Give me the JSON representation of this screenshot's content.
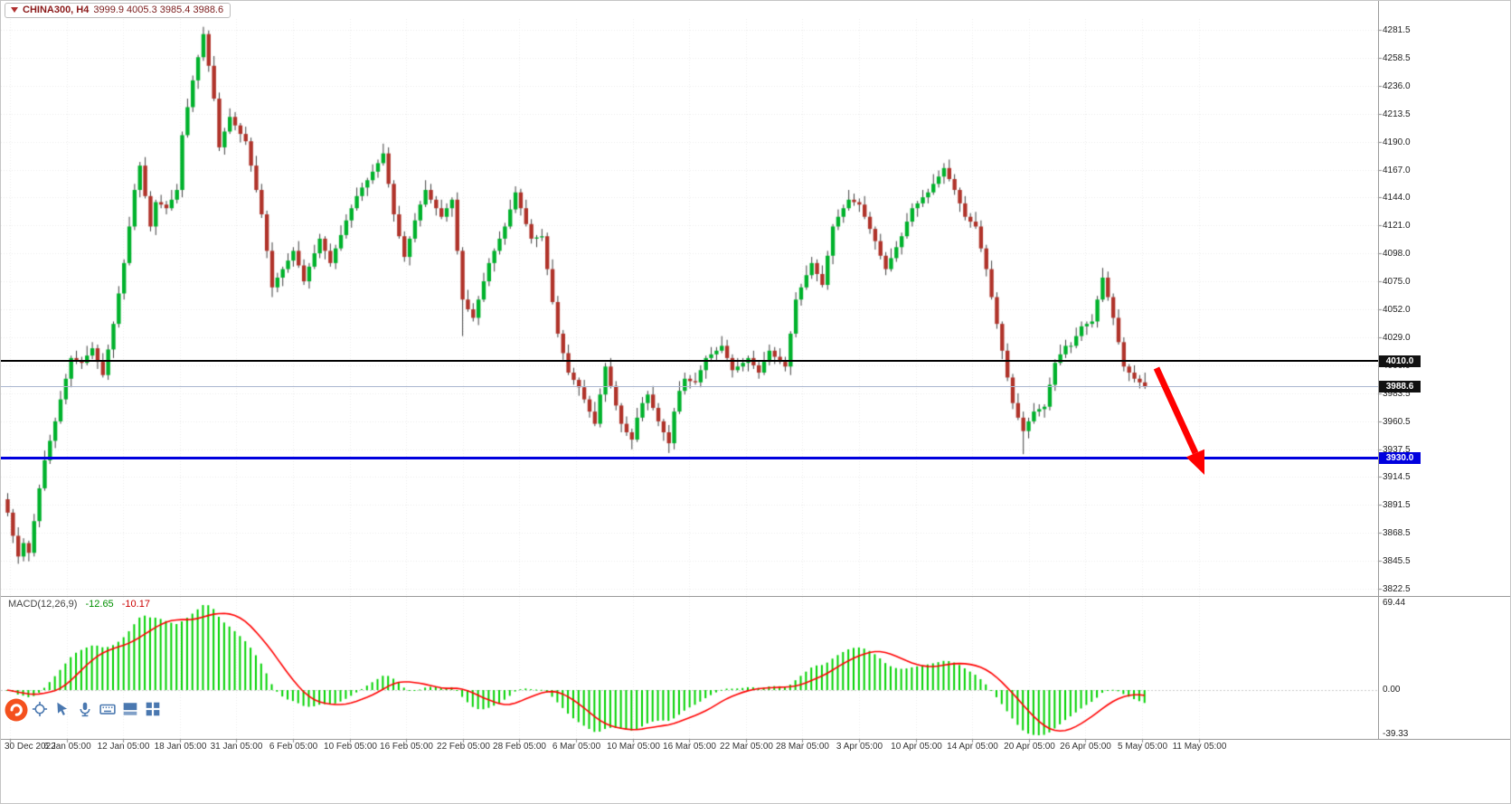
{
  "header": {
    "symbol_label": "CHINA300, H4",
    "ohlc_line": "3999.9 4005.3 3985.4 3988.6"
  },
  "price_badges": {
    "resistance": "4010.0",
    "current": "3988.6",
    "support": "3930.0"
  },
  "indicator_label": {
    "name": "MACD(12,26,9)",
    "value_main": "-12.65",
    "value_signal": "-10.17"
  },
  "toolbar": {
    "icons": [
      "crosshair",
      "cursor",
      "microphone",
      "keyboard",
      "indicator-window",
      "window-grid"
    ]
  },
  "colors": {
    "bull_candle": "#00B22C",
    "bear_candle": "#B0332A",
    "wick": "#3f3f3f",
    "grid": "#ebebeb",
    "resistance_line": "#000000",
    "support_line": "#0000DE",
    "current_price_line": "#aab6cf",
    "badge_bg": "#111111",
    "badge_text": "#ffffff",
    "macd_histogram": "#00D200",
    "macd_signal": "#FF0000",
    "arrow": "#FF0000",
    "icon_blue": "#4a78b0",
    "logo_orange": "#F4511E"
  },
  "chart_data": {
    "type": "candlestick",
    "title": "CHINA300, H4",
    "symbol": "CHINA300",
    "timeframe": "H4",
    "y_range": [
      3822.5,
      4281.5
    ],
    "y_tick_labels": [
      "4281.5",
      "4258.5",
      "4236.0",
      "4213.5",
      "4190.0",
      "4167.0",
      "4144.0",
      "4121.0",
      "4098.0",
      "4075.0",
      "4052.0",
      "4029.0",
      "4006.0",
      "3983.5",
      "3960.5",
      "3937.5",
      "3914.5",
      "3891.5",
      "3868.5",
      "3845.5",
      "3822.5"
    ],
    "x_tick_labels": [
      "30 Dec 2022",
      "6 Jan 05:00",
      "12 Jan 05:00",
      "18 Jan 05:00",
      "31 Jan 05:00",
      "6 Feb 05:00",
      "10 Feb 05:00",
      "16 Feb 05:00",
      "22 Feb 05:00",
      "28 Feb 05:00",
      "6 Mar 05:00",
      "10 Mar 05:00",
      "16 Mar 05:00",
      "22 Mar 05:00",
      "28 Mar 05:00",
      "3 Apr 05:00",
      "10 Apr 05:00",
      "14 Apr 05:00",
      "20 Apr 05:00",
      "26 Apr 05:00",
      "5 May 05:00",
      "11 May 05:00"
    ],
    "levels": {
      "resistance": 4010.0,
      "support": 3930.0,
      "current_price": 3988.6
    },
    "current_bar": {
      "open": 3999.9,
      "high": 4005.3,
      "low": 3985.4,
      "close": 3988.6
    },
    "candles": {
      "first_open": 3896,
      "closes": [
        3885,
        3866,
        3849,
        3860,
        3852,
        3878,
        3905,
        3928,
        3944,
        3960,
        3978,
        3995,
        4012,
        4010,
        4008,
        4014,
        4020,
        4009,
        3998,
        4019,
        4040,
        4065,
        4090,
        4120,
        4150,
        4170,
        4145,
        4120,
        4140,
        4138,
        4135,
        4142,
        4150,
        4195,
        4218,
        4240,
        4259,
        4278,
        4252,
        4225,
        4185,
        4198,
        4210,
        4203,
        4196,
        4190,
        4170,
        4150,
        4130,
        4100,
        4070,
        4078,
        4085,
        4092,
        4100,
        4088,
        4075,
        4087,
        4098,
        4110,
        4100,
        4090,
        4102,
        4113,
        4125,
        4135,
        4145,
        4152,
        4158,
        4165,
        4172,
        4180,
        4155,
        4130,
        4112,
        4095,
        4110,
        4125,
        4138,
        4150,
        4142,
        4135,
        4128,
        4135,
        4142,
        4100,
        4060,
        4052,
        4045,
        4060,
        4075,
        4090,
        4100,
        4110,
        4120,
        4134,
        4148,
        4135,
        4122,
        4110,
        4111,
        4112,
        4085,
        4058,
        4032,
        4016,
        4000,
        3994,
        3988,
        3978,
        3968,
        3958,
        3982,
        4005,
        3989,
        3973,
        3958,
        3951,
        3945,
        3963,
        3975,
        3982,
        3971,
        3960,
        3951,
        3942,
        3968,
        3985,
        3995,
        3993,
        3992,
        4002,
        4012,
        4015,
        4018,
        4022,
        4012,
        4002,
        4005,
        4008,
        4012,
        4006,
        4000,
        4009,
        4018,
        4013,
        4009,
        4005,
        4032,
        4060,
        4070,
        4080,
        4090,
        4081,
        4072,
        4096,
        4120,
        4128,
        4135,
        4142,
        4140,
        4138,
        4128,
        4118,
        4108,
        4096,
        4085,
        4094,
        4103,
        4112,
        4124,
        4135,
        4139,
        4144,
        4148,
        4155,
        4161,
        4168,
        4159,
        4150,
        4139,
        4128,
        4124,
        4120,
        4102,
        4085,
        4062,
        4040,
        4018,
        3996,
        3975,
        3963,
        3952,
        3960,
        3968,
        3970,
        3972,
        3990,
        4008,
        4015,
        4022,
        4022,
        4030,
        4038,
        4040,
        4042,
        4060,
        4078,
        4062,
        4045,
        4025,
        4005,
        4000,
        3995,
        3992,
        3988.6
      ],
      "wick_deltas": [
        [
          5,
          3
        ],
        [
          3,
          6
        ],
        [
          7,
          2
        ],
        [
          4,
          4
        ],
        [
          2,
          7
        ],
        [
          6,
          3
        ],
        [
          3,
          5
        ],
        [
          8,
          2
        ]
      ],
      "special_wicks": {
        "2": [
          0,
          3843
        ],
        "37": [
          4283,
          0
        ],
        "50": [
          0,
          4062
        ],
        "71": [
          4186,
          0
        ],
        "86": [
          0,
          4030
        ],
        "118": [
          0,
          3937
        ],
        "125": [
          0,
          3934
        ],
        "177": [
          4172,
          0
        ],
        "192": [
          0,
          3933
        ]
      }
    },
    "indicator": {
      "name": "MACD",
      "params": [
        12,
        26,
        9
      ],
      "y_tick_labels": [
        "69.44",
        "0.00",
        "-39.33"
      ],
      "legend": "MACD(12,26,9)"
    }
  }
}
